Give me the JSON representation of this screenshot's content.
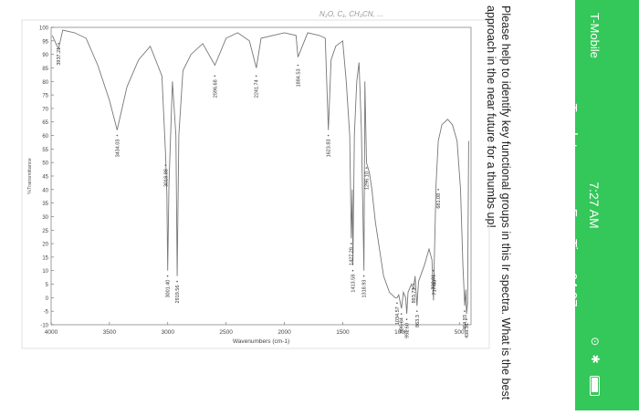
{
  "status": {
    "carrier": "T-Mobile",
    "time": "7:27 AM",
    "facetime": "Touch to resume FaceTime 04:07"
  },
  "question": {
    "text": "Please help to identify key functional groups in this Ir spectra. What is the best approach in the near future for a thumbs up!"
  },
  "handwritten_note": "N₂O, C₁, CH₃CN, ...",
  "chart_data": {
    "type": "line",
    "title": "",
    "xlabel": "Wavenumbers (cm-1)",
    "ylabel": "%Transmittance",
    "xlim": [
      4000,
      400
    ],
    "ylim": [
      -10,
      100
    ],
    "x_ticks": [
      4000,
      3500,
      3000,
      2500,
      2000,
      1500,
      1000,
      500
    ],
    "y_ticks": [
      100,
      95,
      90,
      85,
      80,
      75,
      70,
      65,
      60,
      55,
      50,
      45,
      40,
      35,
      30,
      25,
      20,
      15,
      10,
      5,
      0,
      -5,
      -10
    ],
    "series": [
      {
        "x": [
          3990,
          3937,
          3900,
          3800,
          3700,
          3600,
          3500,
          3434,
          3350,
          3250,
          3150,
          3050,
          3018,
          3008,
          3001,
          2990,
          2960,
          2930,
          2919,
          2905,
          2870,
          2800,
          2700,
          2596,
          2500,
          2400,
          2300,
          2241,
          2200,
          2100,
          2000,
          1900,
          1884,
          1800,
          1700,
          1650,
          1623,
          1600,
          1560,
          1500,
          1470,
          1440,
          1427,
          1418,
          1413,
          1400,
          1380,
          1360,
          1340,
          1318,
          1310,
          1296,
          1270,
          1250,
          1220,
          1150,
          1100,
          1050,
          1034,
          1020,
          996,
          980,
          960,
          951,
          940,
          910,
          893,
          880,
          863,
          850,
          800,
          760,
          735,
          722,
          717,
          700,
          681,
          650,
          600,
          560,
          520,
          490,
          470,
          454,
          445,
          438,
          430,
          420
        ],
        "y": [
          97,
          92,
          99,
          98,
          96,
          86,
          73,
          62,
          78,
          88,
          93,
          82,
          52,
          38,
          10,
          42,
          80,
          60,
          8,
          60,
          84,
          90,
          94,
          86,
          96,
          98,
          95,
          85,
          96,
          97,
          98,
          97,
          89,
          98,
          97,
          96,
          62,
          88,
          93,
          95,
          80,
          60,
          22,
          40,
          12,
          60,
          80,
          87,
          62,
          10,
          80,
          50,
          46,
          40,
          28,
          8,
          2,
          0,
          0,
          1,
          -4,
          2,
          0,
          -6,
          2,
          5,
          3,
          8,
          -3,
          6,
          12,
          18,
          14,
          -1,
          10,
          42,
          58,
          64,
          66,
          64,
          58,
          40,
          12,
          -3,
          3,
          -6,
          -2,
          58
        ]
      }
    ],
    "peak_labels": [
      {
        "x": 3937.21,
        "y": 94,
        "label": "3937.21"
      },
      {
        "x": 3434.03,
        "y": 60,
        "label": "3434.03"
      },
      {
        "x": 3018.88,
        "y": 49,
        "label": "3018.88"
      },
      {
        "x": 3001.4,
        "y": 8,
        "label": "3001.40"
      },
      {
        "x": 2919.56,
        "y": 6,
        "label": "2919.56"
      },
      {
        "x": 2596.68,
        "y": 82,
        "label": "2596.68"
      },
      {
        "x": 2241.74,
        "y": 82,
        "label": "2241.74"
      },
      {
        "x": 1884.53,
        "y": 86,
        "label": "1884.53"
      },
      {
        "x": 1623.83,
        "y": 60,
        "label": "1623.83"
      },
      {
        "x": 1427.28,
        "y": 20,
        "label": "1427.28"
      },
      {
        "x": 1413.58,
        "y": 10,
        "label": "1413.58"
      },
      {
        "x": 1318.93,
        "y": 8,
        "label": "1318.93"
      },
      {
        "x": 1296.1,
        "y": 48,
        "label": "1296.10"
      },
      {
        "x": 1034.57,
        "y": -2,
        "label": "1034.57"
      },
      {
        "x": 996.84,
        "y": -6,
        "label": "996.84"
      },
      {
        "x": 951.6,
        "y": -8,
        "label": "951.60"
      },
      {
        "x": 893.73,
        "y": 5,
        "label": "893.73"
      },
      {
        "x": 863.3,
        "y": -5,
        "label": "863.3"
      },
      {
        "x": 722.91,
        "y": 10,
        "label": "722.91"
      },
      {
        "x": 717.63,
        "y": 8,
        "label": "717.63"
      },
      {
        "x": 681.08,
        "y": 40,
        "label": "681.08"
      },
      {
        "x": 454.93,
        "y": -5,
        "label": "454.93"
      },
      {
        "x": 438.31,
        "y": -8,
        "label": "438.31"
      }
    ]
  }
}
